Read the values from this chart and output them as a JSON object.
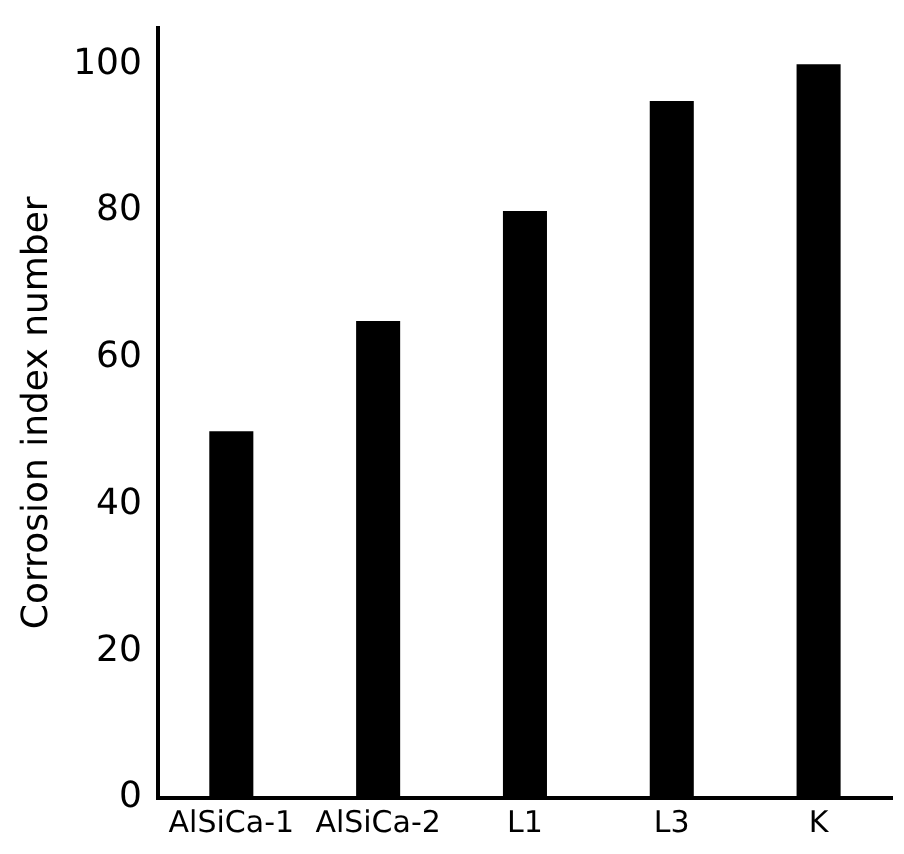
{
  "chart_data": {
    "type": "bar",
    "ylabel": "Corrosion index number",
    "categories": [
      "AlSiCa-1",
      "AlSiCa-2",
      "L1",
      "L3",
      "K"
    ],
    "values": [
      50,
      65,
      80,
      95,
      100
    ],
    "color": "#000000",
    "ylim": [
      0,
      105
    ],
    "yticks": [
      0,
      20,
      40,
      60,
      80,
      100
    ],
    "grid": false,
    "legend": false
  }
}
